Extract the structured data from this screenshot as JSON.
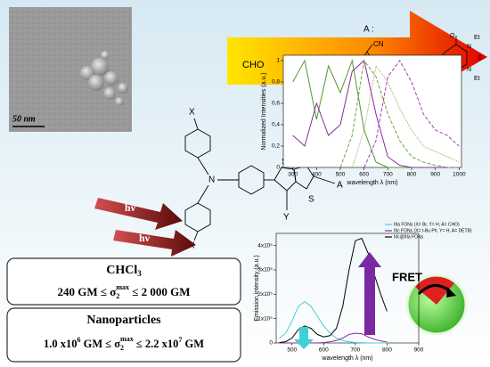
{
  "chart_data": [
    {
      "type": "line",
      "x_label": "wavelength λ (nm)",
      "y_label": "Normalized Intensities (a.u.)",
      "x": [
        300,
        350,
        400,
        450,
        500,
        550,
        600,
        650,
        700,
        750,
        800,
        850,
        900,
        950,
        1000
      ],
      "series": [
        {
          "color": "#4f9a2a",
          "style": "solid",
          "values": [
            0.8,
            1.0,
            0.45,
            0.95,
            0.7,
            1.0,
            0.35,
            0.05,
            0,
            0,
            0,
            0,
            0,
            0,
            0
          ]
        },
        {
          "color": "#8a2aa0",
          "style": "solid",
          "values": [
            0.3,
            0.2,
            0.6,
            0.3,
            0.4,
            0.9,
            1.0,
            0.5,
            0.1,
            0.02,
            0,
            0,
            0,
            0,
            0
          ]
        },
        {
          "color": "#6aa83a",
          "style": "dashed",
          "values": [
            null,
            null,
            null,
            null,
            0,
            0.3,
            1.0,
            0.85,
            0.5,
            0.25,
            0.1,
            0.05,
            0.02,
            0,
            0
          ]
        },
        {
          "color": "#a040b0",
          "style": "dashed",
          "values": [
            null,
            null,
            null,
            null,
            null,
            null,
            0,
            0.25,
            0.85,
            1.0,
            0.8,
            0.5,
            0.35,
            0.3,
            0.2
          ]
        },
        {
          "color": "#8a9a3a",
          "style": "dotted",
          "values": [
            null,
            null,
            null,
            null,
            null,
            0,
            0.35,
            0.95,
            0.8,
            0.55,
            0.35,
            0.2,
            0.15,
            0.1,
            0.05
          ]
        }
      ],
      "xlim": [
        260,
        1010
      ],
      "ylim": [
        0,
        1.05
      ],
      "xticks": [
        300,
        400,
        500,
        600,
        700,
        800,
        900,
        1000
      ],
      "yticks": [
        0,
        {
          "value": 0.2,
          "label": "0,2"
        },
        {
          "value": 0.4,
          "label": "0,4"
        },
        {
          "value": 0.6,
          "label": "0,6"
        },
        {
          "value": 0.8,
          "label": "0,8"
        },
        1
      ]
    },
    {
      "type": "line",
      "x_label": "wavelength λ (nm)",
      "y_label": "Emission intensity (a.u.)",
      "x": [
        460,
        480,
        500,
        520,
        540,
        560,
        580,
        600,
        620,
        640,
        660,
        680,
        700,
        720,
        740,
        760,
        780,
        800
      ],
      "series": [
        {
          "name": "IIIa FONs (X= Br, Y= H, A= CHO)",
          "color": "#3fd0d8",
          "style": "solid",
          "values": [
            20000,
            40000,
            90000,
            150000,
            170000,
            150000,
            110000,
            70000,
            40000,
            20000,
            10000,
            5000,
            2000,
            1000,
            0,
            0,
            0,
            0
          ]
        },
        {
          "name": "IIIc FONs (X= t-Bu Ph, Y= H, A= DETB)",
          "color": "#8a2aa0",
          "style": "solid",
          "values": [
            0,
            0,
            0,
            0,
            0,
            0,
            0,
            2000,
            5000,
            10000,
            20000,
            35000,
            40000,
            38000,
            25000,
            15000,
            8000,
            4000
          ]
        },
        {
          "name": "IIIc@IIIa FONs",
          "color": "#000000",
          "style": "solid",
          "values": [
            2000,
            5000,
            20000,
            55000,
            70000,
            60000,
            35000,
            25000,
            30000,
            60000,
            150000,
            300000,
            420000,
            430000,
            370000,
            280000,
            200000,
            130000
          ]
        }
      ],
      "xlim": [
        450,
        900
      ],
      "ylim": [
        0,
        450000
      ],
      "xticks": [
        500,
        600,
        700,
        800,
        900
      ],
      "yticks": [
        0,
        {
          "value": 100000,
          "label": "1x10⁵"
        },
        {
          "value": 200000,
          "label": "2x10⁵"
        },
        {
          "value": 300000,
          "label": "3x10⁵"
        },
        {
          "value": 400000,
          "label": "4x10⁵"
        }
      ],
      "legend": "top-right"
    }
  ],
  "labels": {
    "scale_bar": "50 nm",
    "substituent": "A :",
    "cho": "CHO",
    "cn": [
      "CN",
      "CN"
    ],
    "detb": [
      "O",
      "O",
      "N",
      "N",
      "S",
      "Et",
      "Et"
    ],
    "molecule": [
      "X",
      "X",
      "X",
      "N",
      "S",
      "S",
      "Y",
      "A"
    ],
    "light": [
      "hν",
      "hν"
    ],
    "fret": "FRET",
    "solution": {
      "title": [
        "CHCl",
        "3"
      ],
      "range": [
        "240 GM ≤ σ",
        "2",
        "max",
        " ≤ 2 000 GM"
      ]
    },
    "particles": {
      "title": "Nanoparticles",
      "range": [
        "1.0 x10",
        "6",
        " GM ≤ σ",
        "2",
        "max",
        " ≤ 2.2 x10",
        "7",
        " GM"
      ]
    }
  }
}
